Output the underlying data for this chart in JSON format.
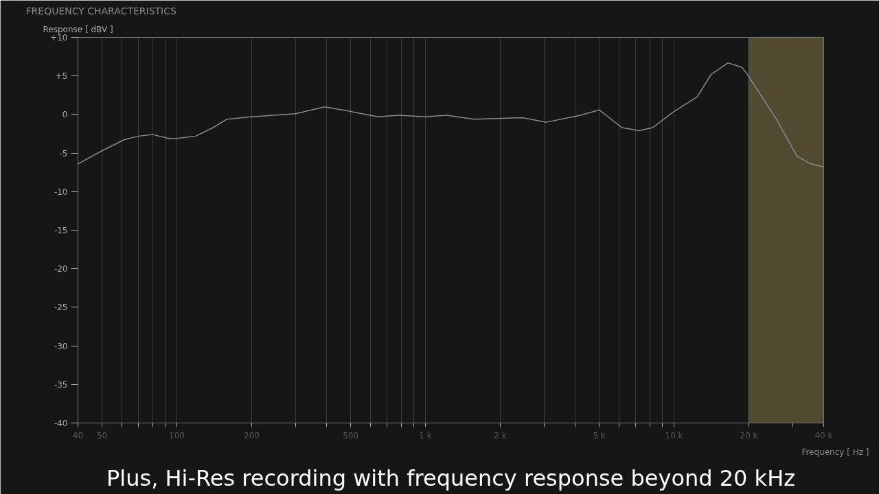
{
  "chart_data": {
    "type": "line",
    "title": "FREQUENCY CHARACTERISTICS",
    "ylabel": "Response [ dBV ]",
    "xlabel": "Frequency [ Hz ]",
    "annotations": [
      "Plus, Hi-Res recording with frequency response beyond 20 kHz"
    ],
    "log": "x",
    "grid": "x",
    "marker": "none",
    "line_style": "solid",
    "xlim": [
      40,
      40000
    ],
    "ylim": [
      -40,
      10
    ],
    "xticks": [
      40,
      50,
      {
        "value": 60,
        "label": null
      },
      {
        "value": 70,
        "label": null
      },
      {
        "value": 80,
        "label": null
      },
      {
        "value": 90,
        "label": null
      },
      100,
      200,
      {
        "value": 300,
        "label": null
      },
      {
        "value": 400,
        "label": null
      },
      500,
      {
        "value": 600,
        "label": null
      },
      {
        "value": 700,
        "label": null
      },
      {
        "value": 800,
        "label": null
      },
      {
        "value": 900,
        "label": null
      },
      {
        "value": 1000,
        "label": "1 k"
      },
      {
        "value": 2000,
        "label": "2 k"
      },
      {
        "value": 3000,
        "label": null
      },
      {
        "value": 4000,
        "label": null
      },
      {
        "value": 5000,
        "label": "5 k"
      },
      {
        "value": 6000,
        "label": null
      },
      {
        "value": 7000,
        "label": null
      },
      {
        "value": 8000,
        "label": null
      },
      {
        "value": 9000,
        "label": null
      },
      {
        "value": 10000,
        "label": "10 k"
      },
      {
        "value": 20000,
        "label": "20 k"
      },
      {
        "value": 30000,
        "label": null
      },
      {
        "value": 40000,
        "label": "40 k"
      }
    ],
    "yticks": [
      {
        "value": 10,
        "label": "+10"
      },
      {
        "value": 5,
        "label": "+5"
      },
      0,
      -5,
      -10,
      -15,
      -20,
      -25,
      -30,
      -35,
      -40
    ],
    "bands": [
      {
        "axis": "x",
        "from": 20000,
        "to": 40000,
        "color": "#524a30"
      }
    ],
    "series": [
      {
        "color": "#8a8a8a",
        "x": [
          40,
          50,
          61,
          70,
          80,
          93,
          100,
          119,
          140,
          159,
          200,
          300,
          394,
          500,
          644,
          780,
          1000,
          1216,
          1571,
          2450,
          3060,
          4200,
          5000,
          6170,
          7230,
          8200,
          10000,
          12400,
          14100,
          16500,
          18800,
          20000,
          25800,
          31200,
          35500,
          40000
        ],
        "values": [
          -6.4,
          -4.7,
          -3.3,
          -2.8,
          -2.6,
          -3.1,
          -3.1,
          -2.8,
          -1.7,
          -0.6,
          -0.3,
          0.1,
          1.0,
          0.4,
          -0.3,
          -0.1,
          -0.3,
          -0.1,
          -0.6,
          -0.4,
          -1.0,
          -0.1,
          0.6,
          -1.7,
          -2.1,
          -1.7,
          0.4,
          2.3,
          5.2,
          6.7,
          6.1,
          4.9,
          -0.6,
          -5.4,
          -6.4,
          -6.8
        ]
      }
    ]
  }
}
